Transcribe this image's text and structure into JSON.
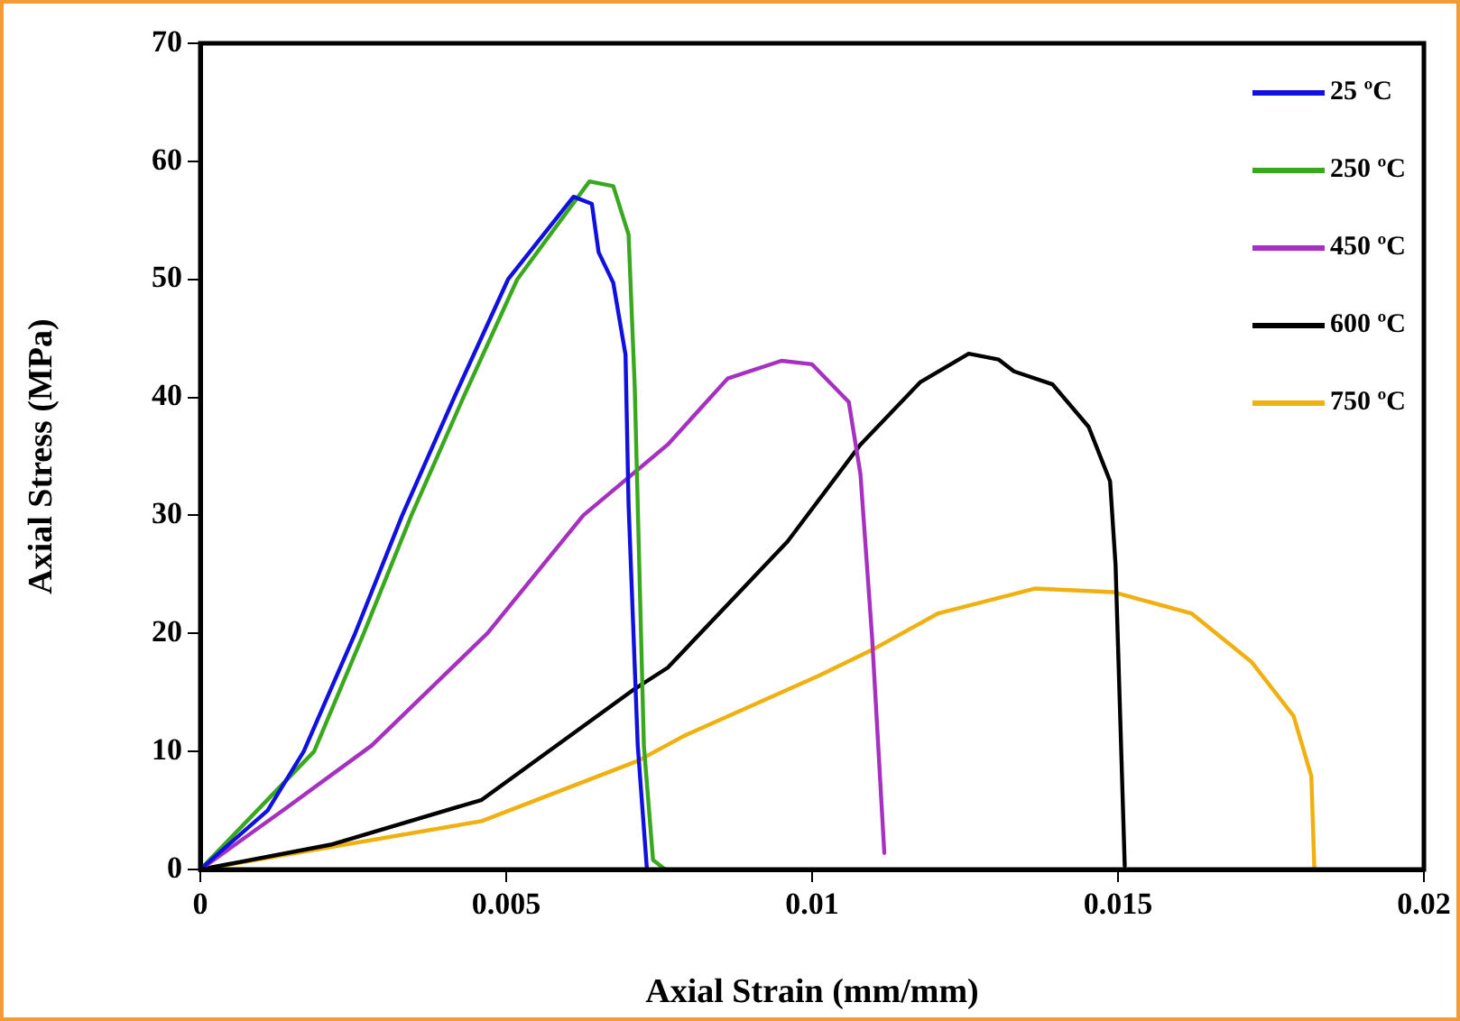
{
  "chart_data": {
    "type": "line",
    "xlabel": "Axial Strain (mm/mm)",
    "ylabel": "Axial Stress (MPa)",
    "xlim": [
      0,
      0.02
    ],
    "xticks": [
      0,
      0.005,
      0.01,
      0.015,
      0.02
    ],
    "ylim": [
      0,
      70
    ],
    "yticks": [
      0,
      10,
      20,
      30,
      40,
      50,
      60,
      70
    ],
    "grid": false,
    "legend": "top right",
    "marker": "none",
    "line_style": "solid",
    "series": [
      {
        "name": "25 ºC",
        "color": "#1010e0",
        "x": [
          0,
          0.0011,
          0.00169,
          0.00253,
          0.0033,
          0.00415,
          0.00503,
          0.0061,
          0.0064,
          0.00651,
          0.00675,
          0.00695,
          0.007,
          0.00715,
          0.0073
        ],
        "values": [
          0,
          5,
          10,
          20,
          30,
          40,
          50,
          57,
          56.4,
          52.3,
          49.7,
          43.6,
          30.9,
          10.5,
          0
        ]
      },
      {
        "name": "250 ºC",
        "color": "#3aa81e",
        "x": [
          0,
          0.00186,
          0.00267,
          0.00345,
          0.0043,
          0.00518,
          0.00636,
          0.00675,
          0.007,
          0.0071,
          0.00725,
          0.0074,
          0.0076
        ],
        "values": [
          0,
          10,
          20,
          30,
          40,
          50,
          58.3,
          57.9,
          53.8,
          41,
          10.5,
          0.8,
          0
        ]
      },
      {
        "name": "450 ºC",
        "color": "#a630c0",
        "x": [
          0,
          0.00135,
          0.0028,
          0.00469,
          0.00626,
          0.00764,
          0.00862,
          0.0095,
          0.01,
          0.0106,
          0.01079,
          0.01098,
          0.01118
        ],
        "values": [
          0,
          5,
          10.5,
          20,
          30,
          36,
          41.6,
          43.1,
          42.8,
          39.6,
          33.5,
          19.7,
          1.4
        ]
      },
      {
        "name": "600 ºC",
        "color": "#000000",
        "x": [
          0,
          0.00213,
          0.0046,
          0.0071,
          0.00764,
          0.0096,
          0.01079,
          0.01177,
          0.01256,
          0.01305,
          0.0133,
          0.01393,
          0.01452,
          0.01487,
          0.01496,
          0.01511
        ],
        "values": [
          0,
          2.1,
          5.9,
          15.3,
          17.1,
          27.8,
          36,
          41.3,
          43.7,
          43.2,
          42.2,
          41.1,
          37.5,
          32.9,
          25.8,
          0.3
        ]
      },
      {
        "name": "750 ºC",
        "color": "#f0b010",
        "x": [
          0,
          0.0046,
          0.00715,
          0.0079,
          0.0101,
          0.01098,
          0.01206,
          0.01364,
          0.01492,
          0.0162,
          0.01718,
          0.01787,
          0.01816,
          0.01821
        ],
        "values": [
          0,
          4.1,
          9.2,
          11.3,
          16.4,
          18.6,
          21.7,
          23.8,
          23.5,
          21.7,
          17.6,
          13,
          7.9,
          0
        ]
      }
    ]
  }
}
